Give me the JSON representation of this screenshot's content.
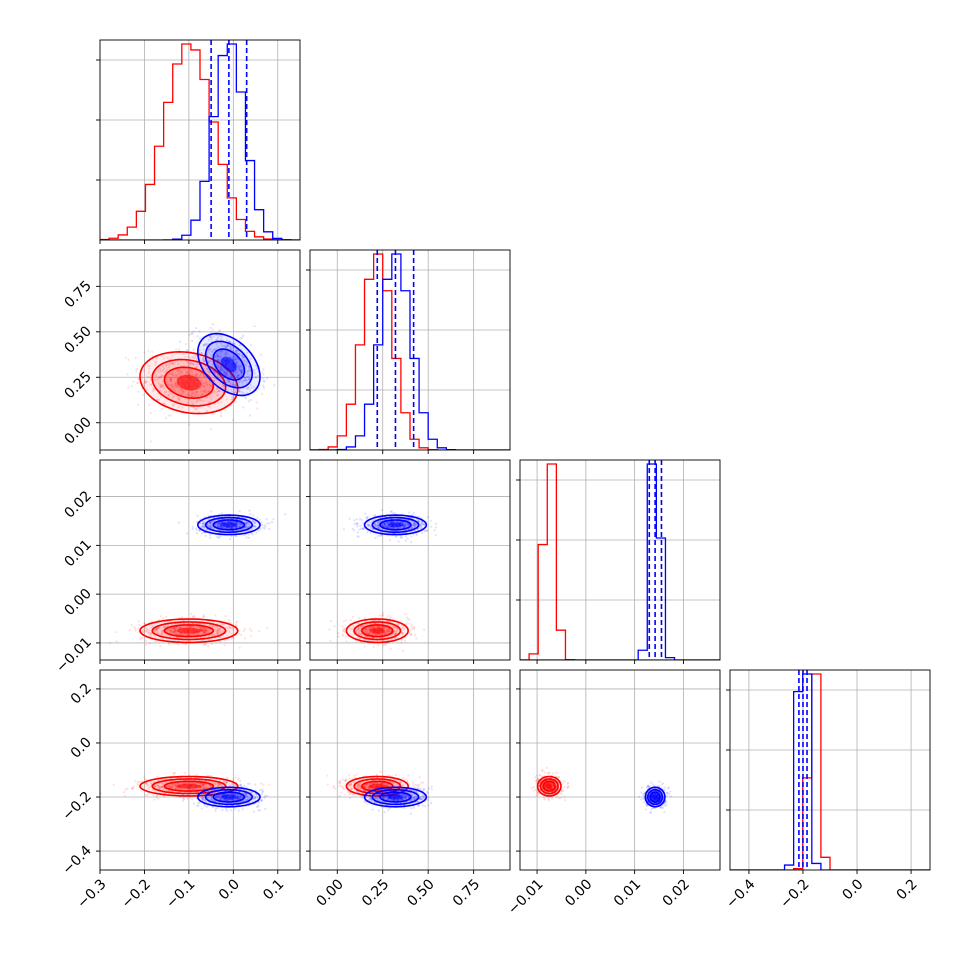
{
  "chart_data": {
    "type": "corner",
    "parameters": 4,
    "grid": true,
    "series": [
      {
        "color": "#ff0000",
        "means": [
          -0.1,
          0.22,
          -0.0075,
          -0.16
        ],
        "sds": [
          0.055,
          0.085,
          0.0012,
          0.018
        ],
        "corr": [
          [
            1,
            -0.2,
            0,
            0
          ],
          [
            -0.2,
            1,
            0,
            0
          ],
          [
            0,
            0,
            1,
            0
          ],
          [
            0,
            0,
            0,
            1
          ]
        ]
      },
      {
        "color": "#0000ff",
        "means": [
          -0.01,
          0.32,
          0.0142,
          -0.2
        ],
        "sds": [
          0.035,
          0.085,
          0.001,
          0.018
        ],
        "corr": [
          [
            1,
            -0.4,
            0,
            0
          ],
          [
            -0.4,
            1,
            0,
            0
          ],
          [
            0,
            0,
            1,
            0
          ],
          [
            0,
            0,
            0,
            1
          ]
        ]
      }
    ],
    "quantile_lines": {
      "color": "#0000ff",
      "values": [
        [
          -0.05,
          -0.01,
          0.03
        ],
        [
          0.22,
          0.32,
          0.42
        ],
        [
          0.013,
          0.0142,
          0.0155
        ],
        [
          -0.215,
          -0.2,
          -0.185
        ]
      ]
    },
    "axes": [
      {
        "range": [
          -0.3,
          0.15
        ],
        "ticks": [
          -0.3,
          -0.2,
          -0.1,
          0.0,
          0.1
        ],
        "tick_labels": [
          "−0.3",
          "−0.2",
          "−0.1",
          "0.0",
          "0.1"
        ]
      },
      {
        "range": [
          -0.15,
          0.95
        ],
        "ticks": [
          0.0,
          0.25,
          0.5,
          0.75
        ],
        "tick_labels": [
          "0.00",
          "0.25",
          "0.50",
          "0.75"
        ]
      },
      {
        "range": [
          -0.0135,
          0.0275
        ],
        "ticks": [
          -0.01,
          0.0,
          0.01,
          0.02
        ],
        "tick_labels": [
          "−0.01",
          "0.00",
          "0.01",
          "0.02"
        ]
      },
      {
        "range": [
          -0.47,
          0.27
        ],
        "ticks": [
          -0.4,
          -0.2,
          0.0,
          0.2
        ],
        "tick_labels": [
          "−0.4",
          "−0.2",
          "0.0",
          "0.2"
        ]
      }
    ]
  }
}
